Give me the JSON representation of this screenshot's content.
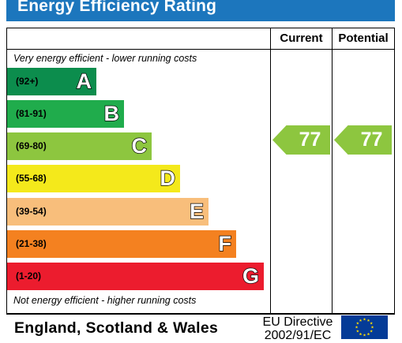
{
  "title": "Energy Efficiency Rating",
  "columns": {
    "current": "Current",
    "potential": "Potential"
  },
  "top_caption": "Very energy efficient - lower running costs",
  "bottom_caption": "Not energy efficient - higher running costs",
  "bands": [
    {
      "range": "(92+)",
      "letter": "A",
      "color": "#0c8d4d"
    },
    {
      "range": "(81-91)",
      "letter": "B",
      "color": "#20ac4c"
    },
    {
      "range": "(69-80)",
      "letter": "C",
      "color": "#8dc63f"
    },
    {
      "range": "(55-68)",
      "letter": "D",
      "color": "#f4e91b"
    },
    {
      "range": "(39-54)",
      "letter": "E",
      "color": "#f8be7b"
    },
    {
      "range": "(21-38)",
      "letter": "F",
      "color": "#f48120"
    },
    {
      "range": "(1-20)",
      "letter": "G",
      "color": "#ec1c2e"
    }
  ],
  "current_rating": {
    "value": "77",
    "color": "#8dc63f"
  },
  "potential_rating": {
    "value": "77",
    "color": "#8dc63f"
  },
  "footer": {
    "region": "England, Scotland & Wales",
    "directive_line1": "EU Directive",
    "directive_line2": "2002/91/EC",
    "flag_icon": "eu-flag-icon"
  }
}
